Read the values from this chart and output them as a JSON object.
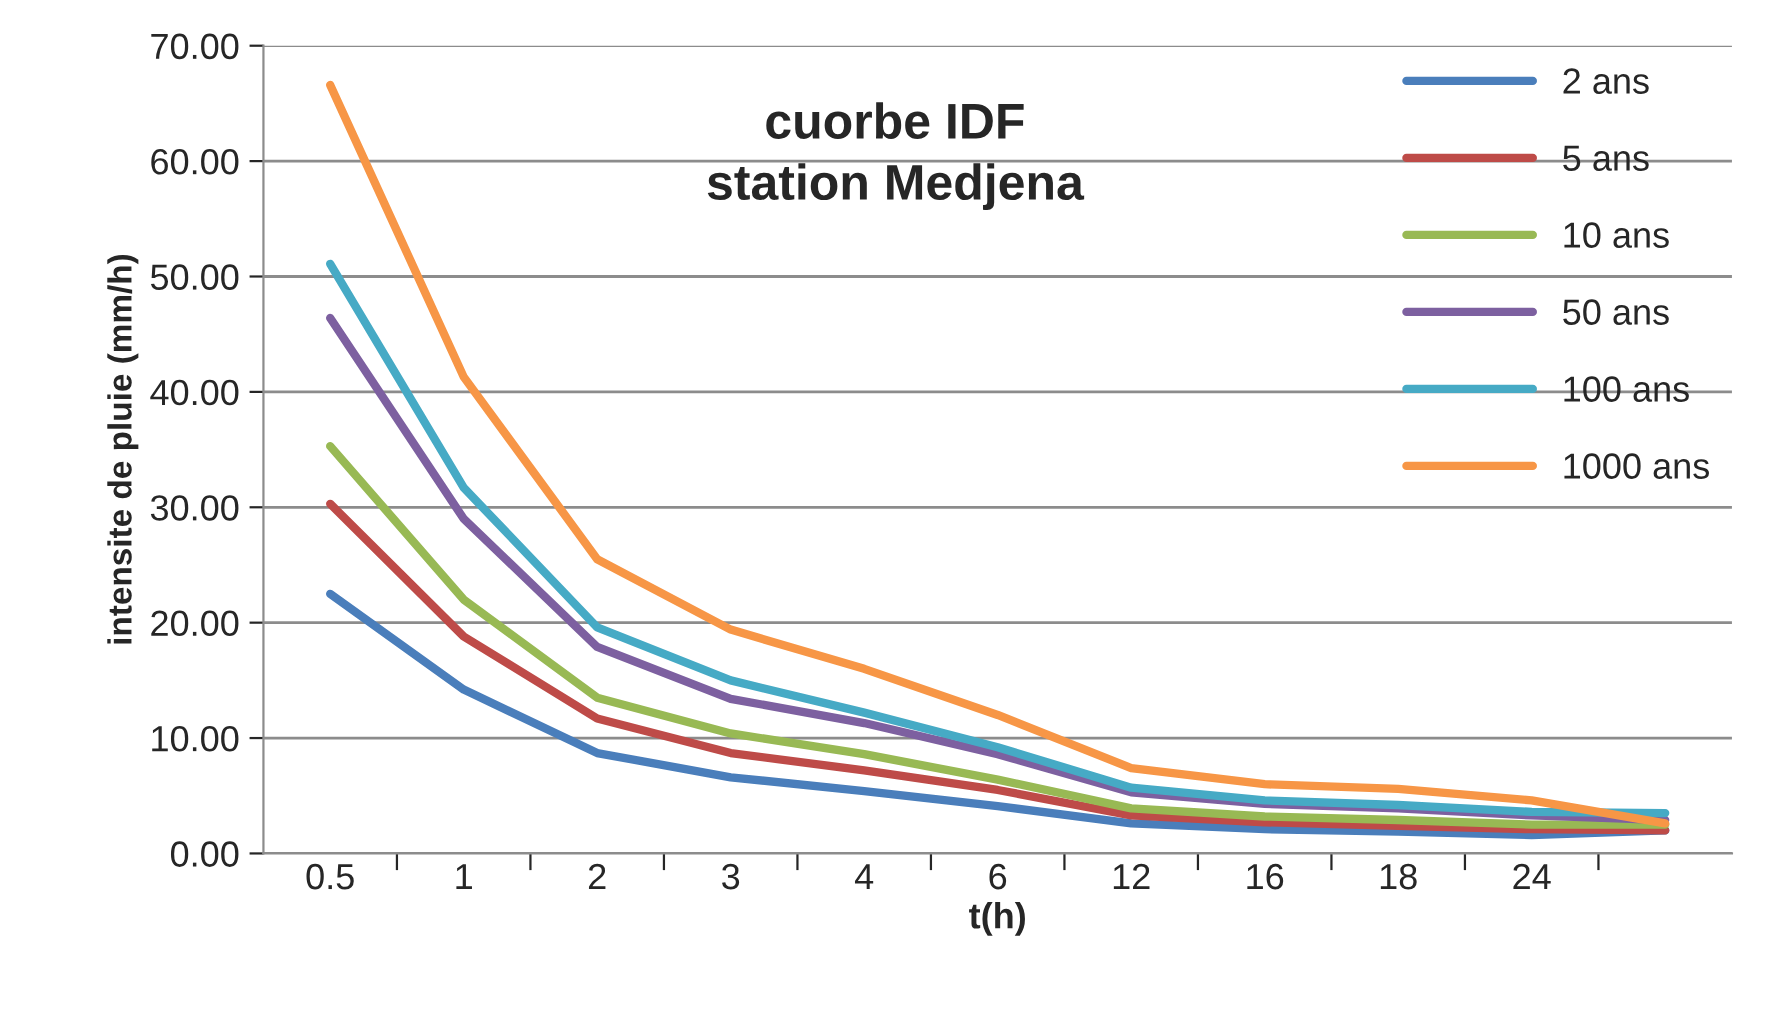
{
  "chart_data": {
    "type": "line",
    "title": "cuorbe IDF\nstation Medjena",
    "xlabel": "t(h)",
    "ylabel": "intensite de pluie (mm/h)",
    "categories": [
      "0.5",
      "1",
      "2",
      "3",
      "4",
      "6",
      "12",
      "16",
      "18",
      "24",
      null
    ],
    "series": [
      {
        "name": "2 ans",
        "color": "#4a7ebb",
        "values": [
          22.5,
          14.2,
          8.7,
          6.6,
          5.4,
          4.1,
          2.6,
          2.1,
          1.9,
          1.6,
          2.0
        ]
      },
      {
        "name": "5 ans",
        "color": "#be4b48",
        "values": [
          30.3,
          18.8,
          11.7,
          8.7,
          7.2,
          5.5,
          3.3,
          2.7,
          2.4,
          2.1,
          2.0
        ]
      },
      {
        "name": "10 ans",
        "color": "#98b954",
        "values": [
          35.3,
          22.0,
          13.5,
          10.4,
          8.6,
          6.4,
          3.9,
          3.2,
          2.9,
          2.5,
          2.5
        ]
      },
      {
        "name": "50 ans",
        "color": "#7d60a0",
        "values": [
          46.4,
          29.0,
          17.9,
          13.4,
          11.3,
          8.6,
          5.3,
          4.3,
          3.9,
          3.3,
          2.9
        ]
      },
      {
        "name": "100 ans",
        "color": "#46aac5",
        "values": [
          51.1,
          31.7,
          19.6,
          15.0,
          12.2,
          9.2,
          5.7,
          4.6,
          4.2,
          3.6,
          3.5
        ]
      },
      {
        "name": "1000 ans",
        "color": "#f79646",
        "values": [
          66.6,
          41.3,
          25.5,
          19.4,
          16.0,
          12.0,
          7.4,
          6.0,
          5.6,
          4.6,
          2.6
        ]
      }
    ],
    "ylim": [
      0,
      70
    ],
    "yticks": [
      {
        "value": 0,
        "label": "0.00"
      },
      {
        "value": 10,
        "label": "10.00"
      },
      {
        "value": 20,
        "label": "20.00"
      },
      {
        "value": 30,
        "label": "30.00"
      },
      {
        "value": 40,
        "label": "40.00"
      },
      {
        "value": 50,
        "label": "50.00"
      },
      {
        "value": 60,
        "label": "60.00"
      },
      {
        "value": 70,
        "label": "70.00"
      }
    ],
    "grid": "y",
    "legend": "top right",
    "marker": "none",
    "line_style": "solid"
  }
}
